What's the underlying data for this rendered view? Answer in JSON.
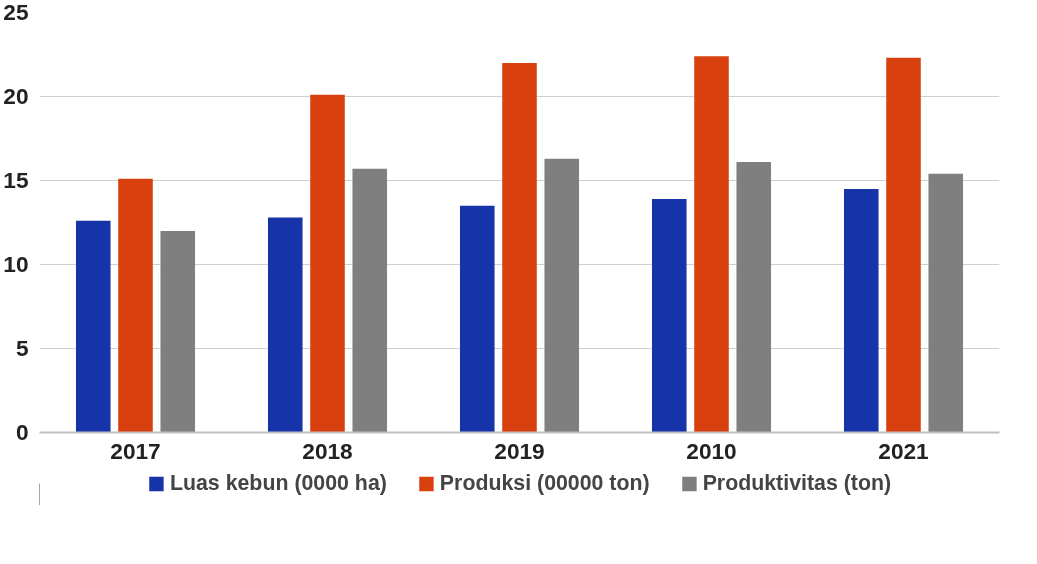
{
  "chart_data": {
    "type": "bar",
    "categories": [
      "2017",
      "2018",
      "2019",
      "2010",
      "2021"
    ],
    "series": [
      {
        "name": "Luas kebun (0000 ha)",
        "color": "#1733a8",
        "values": [
          12.6,
          12.8,
          13.5,
          13.9,
          14.5
        ]
      },
      {
        "name": "Produksi (00000 ton)",
        "color": "#d9400f",
        "values": [
          15.1,
          20.1,
          22.0,
          22.4,
          22.3
        ]
      },
      {
        "name": "Produktivitas (ton)",
        "color": "#7f7f7f",
        "values": [
          12.0,
          15.7,
          16.3,
          16.1,
          15.4
        ]
      }
    ],
    "ylim": [
      0,
      25
    ],
    "yticks": [
      0,
      5,
      10,
      15,
      20,
      25
    ],
    "grid": "y",
    "legend": "bottom"
  }
}
